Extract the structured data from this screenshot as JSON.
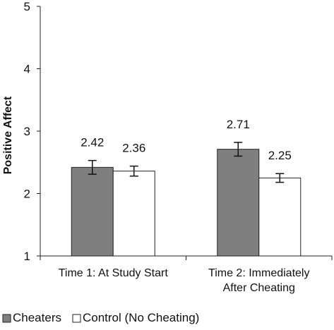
{
  "chart_data": {
    "type": "bar",
    "ylabel": "Positive Affect",
    "xlabel": "",
    "ylim": [
      1,
      5
    ],
    "yticks": [
      "1",
      "2",
      "3",
      "4",
      "5"
    ],
    "categories": [
      [
        "Time 1: At Study Start"
      ],
      [
        "Time 2: Immediately",
        "After Cheating"
      ]
    ],
    "series": [
      {
        "name": "Cheaters",
        "color": "#7f7f7f",
        "values": [
          2.42,
          2.71
        ],
        "value_labels": [
          "2.42",
          "2.71"
        ],
        "error": [
          0.11,
          0.11
        ]
      },
      {
        "name": "Control (No Cheating)",
        "color": "#ffffff",
        "values": [
          2.36,
          2.25
        ],
        "value_labels": [
          "2.36",
          "2.25"
        ],
        "error": [
          0.08,
          0.07
        ]
      }
    ],
    "legend_position": "bottom",
    "grid": false
  }
}
